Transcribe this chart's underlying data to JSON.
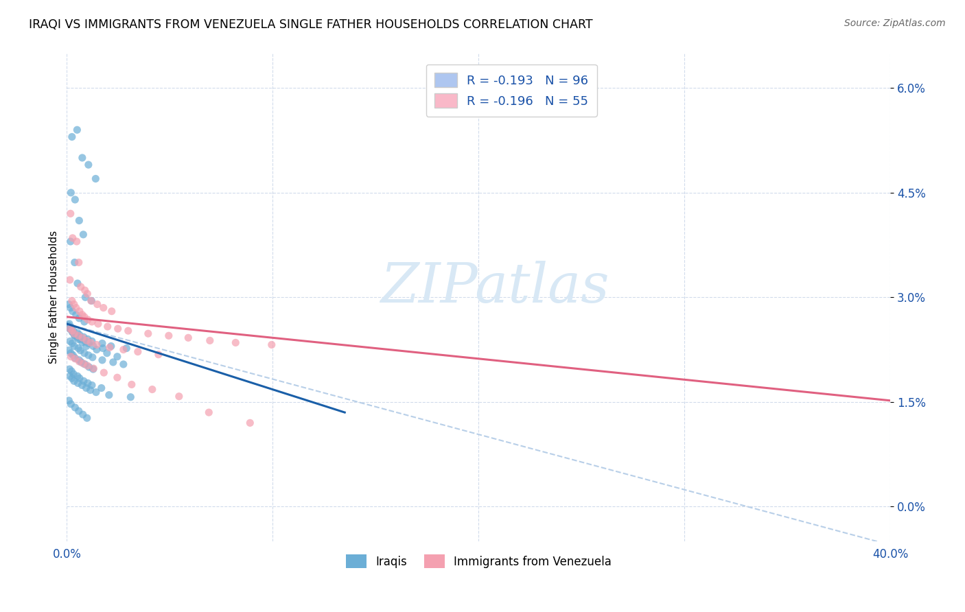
{
  "title": "IRAQI VS IMMIGRANTS FROM VENEZUELA SINGLE FATHER HOUSEHOLDS CORRELATION CHART",
  "source": "Source: ZipAtlas.com",
  "ylabel": "Single Father Households",
  "ytick_vals": [
    0.0,
    1.5,
    3.0,
    4.5,
    6.0
  ],
  "xlim": [
    0.0,
    40.0
  ],
  "ylim": [
    -0.5,
    6.5
  ],
  "iraqi_color": "#6baed6",
  "venezuela_color": "#f4a0b0",
  "iraqi_line_color": "#1a5fa8",
  "venezuela_line_color": "#e06080",
  "dashed_line_color": "#b8cfe8",
  "watermark_color": "#d8e8f5",
  "iraqi_scatter_x": [
    0.25,
    0.5,
    0.75,
    1.05,
    1.4,
    0.2,
    0.4,
    0.6,
    0.8,
    0.18,
    0.38,
    0.52,
    0.9,
    1.2,
    0.1,
    0.18,
    0.28,
    0.45,
    0.6,
    0.85,
    0.08,
    0.15,
    0.28,
    0.38,
    0.55,
    0.75,
    0.95,
    1.45,
    1.95,
    2.45,
    0.1,
    0.18,
    0.28,
    0.38,
    0.48,
    0.65,
    0.88,
    1.05,
    1.28,
    1.75,
    0.12,
    0.22,
    0.32,
    0.52,
    0.62,
    0.82,
    1.02,
    1.22,
    1.72,
    2.15,
    2.9,
    0.1,
    0.2,
    0.3,
    0.4,
    0.6,
    0.7,
    0.88,
    1.08,
    1.28,
    0.16,
    0.26,
    0.36,
    0.56,
    0.66,
    0.85,
    1.05,
    1.25,
    1.72,
    2.25,
    2.75,
    0.13,
    0.23,
    0.33,
    0.52,
    0.62,
    0.82,
    1.02,
    1.22,
    1.68,
    0.15,
    0.25,
    0.35,
    0.54,
    0.74,
    0.94,
    1.14,
    1.42,
    2.05,
    3.1,
    0.1,
    0.2,
    0.4,
    0.58,
    0.78,
    0.98
  ],
  "iraqi_scatter_y": [
    5.3,
    5.4,
    5.0,
    4.9,
    4.7,
    4.5,
    4.4,
    4.1,
    3.9,
    3.8,
    3.5,
    3.2,
    3.0,
    2.95,
    2.9,
    2.85,
    2.8,
    2.75,
    2.7,
    2.65,
    2.6,
    2.55,
    2.5,
    2.45,
    2.4,
    2.35,
    2.3,
    2.25,
    2.2,
    2.15,
    2.58,
    2.54,
    2.5,
    2.46,
    2.43,
    2.4,
    2.37,
    2.34,
    2.3,
    2.27,
    2.62,
    2.57,
    2.52,
    2.49,
    2.46,
    2.43,
    2.4,
    2.37,
    2.34,
    2.3,
    2.27,
    2.24,
    2.2,
    2.17,
    2.13,
    2.1,
    2.07,
    2.04,
    2.0,
    1.97,
    2.37,
    2.34,
    2.3,
    2.27,
    2.24,
    2.2,
    2.17,
    2.14,
    2.1,
    2.07,
    2.04,
    1.97,
    1.94,
    1.9,
    1.87,
    1.84,
    1.8,
    1.77,
    1.74,
    1.7,
    1.87,
    1.84,
    1.8,
    1.77,
    1.74,
    1.7,
    1.67,
    1.64,
    1.6,
    1.57,
    1.52,
    1.47,
    1.42,
    1.37,
    1.32,
    1.27
  ],
  "venezuela_scatter_x": [
    0.18,
    0.28,
    0.48,
    0.58,
    0.68,
    0.88,
    1.0,
    1.18,
    1.48,
    1.78,
    2.18,
    0.15,
    0.25,
    0.35,
    0.45,
    0.62,
    0.75,
    0.85,
    1.02,
    1.22,
    1.52,
    1.98,
    2.48,
    2.98,
    3.95,
    4.95,
    5.9,
    6.95,
    8.2,
    9.95,
    0.16,
    0.26,
    0.36,
    0.56,
    0.76,
    0.96,
    1.16,
    1.45,
    2.08,
    2.75,
    3.45,
    4.45,
    0.2,
    0.4,
    0.6,
    0.8,
    1.0,
    1.3,
    1.8,
    2.45,
    3.15,
    4.15,
    5.45,
    6.9,
    8.9
  ],
  "venezuela_scatter_y": [
    4.2,
    3.85,
    3.8,
    3.5,
    3.15,
    3.1,
    3.05,
    2.95,
    2.9,
    2.85,
    2.8,
    3.25,
    2.95,
    2.9,
    2.85,
    2.8,
    2.75,
    2.72,
    2.68,
    2.65,
    2.62,
    2.58,
    2.55,
    2.52,
    2.48,
    2.45,
    2.42,
    2.38,
    2.35,
    2.32,
    2.55,
    2.52,
    2.48,
    2.45,
    2.42,
    2.38,
    2.35,
    2.32,
    2.28,
    2.25,
    2.22,
    2.18,
    2.15,
    2.12,
    2.08,
    2.05,
    2.02,
    1.98,
    1.92,
    1.85,
    1.75,
    1.68,
    1.58,
    1.35,
    1.2
  ],
  "iraqi_trend_x": [
    0.0,
    13.5
  ],
  "iraqi_trend_y": [
    2.62,
    1.35
  ],
  "venezuela_trend_x": [
    0.0,
    40.0
  ],
  "venezuela_trend_y": [
    2.72,
    1.52
  ],
  "dashed_trend_x": [
    0.0,
    40.0
  ],
  "dashed_trend_y": [
    2.62,
    -0.55
  ],
  "legend1_label": "R = -0.193   N = 96",
  "legend2_label": "R = -0.196   N = 55",
  "legend1_facecolor": "#aec6f0",
  "legend2_facecolor": "#f9b8c8",
  "legend_text_color": "#1a52a8",
  "bottom_label1": "Iraqis",
  "bottom_label2": "Immigrants from Venezuela"
}
